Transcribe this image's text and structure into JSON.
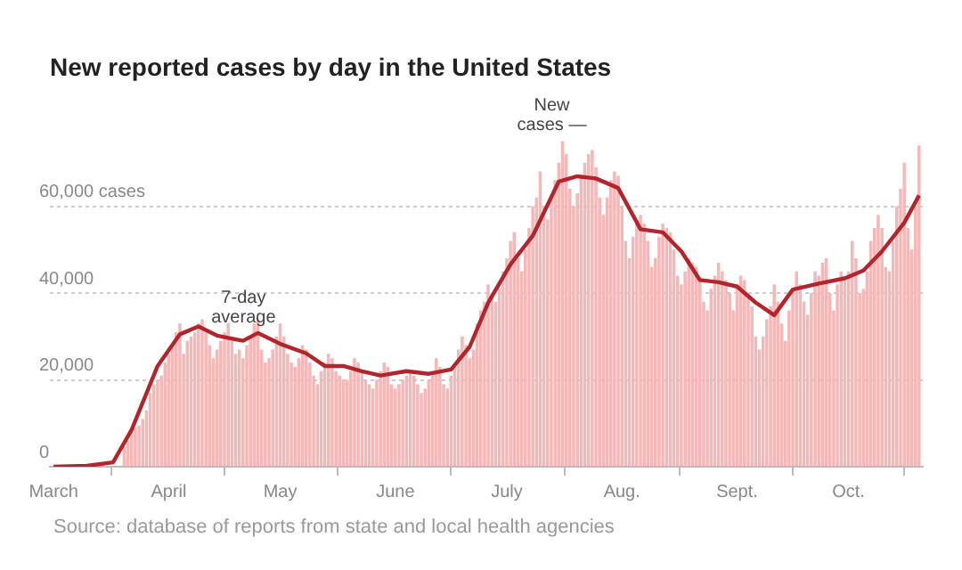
{
  "chart_data": {
    "type": "bar",
    "title": "New reported cases by day in the United States",
    "x": [
      "--03-20",
      "--03-21",
      "--03-22",
      "--03-23",
      "--03-24",
      "--03-25",
      "--03-26",
      "--03-27",
      "--03-28",
      "--03-29",
      "--03-30",
      "--03-31",
      "--04-01",
      "--04-02",
      "--04-03",
      "--04-04",
      "--04-05",
      "--04-06",
      "--04-07",
      "--04-08",
      "--04-09",
      "--04-10",
      "--04-11",
      "--04-12",
      "--04-13",
      "--04-14",
      "--04-15",
      "--04-16",
      "--04-17",
      "--04-18",
      "--04-19",
      "--04-20",
      "--04-21",
      "--04-22",
      "--04-23",
      "--04-24",
      "--04-25",
      "--04-26",
      "--04-27",
      "--04-28",
      "--04-29",
      "--04-30",
      "--05-01",
      "--05-02",
      "--05-03",
      "--05-04",
      "--05-05",
      "--05-06",
      "--05-07",
      "--05-08",
      "--05-09",
      "--05-10",
      "--05-11",
      "--05-12",
      "--05-13",
      "--05-14",
      "--05-15",
      "--05-16",
      "--05-17",
      "--05-18",
      "--05-19",
      "--05-20",
      "--05-21",
      "--05-22",
      "--05-23",
      "--05-24",
      "--05-25",
      "--05-26",
      "--05-27",
      "--05-28",
      "--05-29",
      "--05-30",
      "--05-31",
      "--06-01",
      "--06-02",
      "--06-03",
      "--06-04",
      "--06-05",
      "--06-06",
      "--06-07",
      "--06-08",
      "--06-09",
      "--06-10",
      "--06-11",
      "--06-12",
      "--06-13",
      "--06-14",
      "--06-15",
      "--06-16",
      "--06-17",
      "--06-18",
      "--06-19",
      "--06-20",
      "--06-21",
      "--06-22",
      "--06-23",
      "--06-24",
      "--06-25",
      "--06-26",
      "--06-27",
      "--06-28",
      "--06-29",
      "--06-30",
      "--07-01",
      "--07-02",
      "--07-03",
      "--07-04",
      "--07-05",
      "--07-06",
      "--07-07",
      "--07-08",
      "--07-09",
      "--07-10",
      "--07-11",
      "--07-12",
      "--07-13",
      "--07-14",
      "--07-15",
      "--07-16",
      "--07-17",
      "--07-18",
      "--07-19",
      "--07-20",
      "--07-21",
      "--07-22",
      "--07-23",
      "--07-24",
      "--07-25",
      "--07-26",
      "--07-27",
      "--07-28",
      "--07-29",
      "--07-30",
      "--07-31",
      "--08-01",
      "--08-02",
      "--08-03",
      "--08-04",
      "--08-05",
      "--08-06",
      "--08-07",
      "--08-08",
      "--08-09",
      "--08-10",
      "--08-11",
      "--08-12",
      "--08-13",
      "--08-14",
      "--08-15",
      "--08-16",
      "--08-17",
      "--08-18",
      "--08-19",
      "--08-20",
      "--08-21",
      "--08-22",
      "--08-23",
      "--08-24",
      "--08-25",
      "--08-26",
      "--08-27",
      "--08-28",
      "--08-29",
      "--08-30",
      "--08-31",
      "--09-01",
      "--09-02",
      "--09-03",
      "--09-04",
      "--09-05",
      "--09-06",
      "--09-07",
      "--09-08",
      "--09-09",
      "--09-10",
      "--09-11",
      "--09-12",
      "--09-13",
      "--09-14",
      "--09-15",
      "--09-16",
      "--09-17",
      "--09-18",
      "--09-19",
      "--09-20",
      "--09-21",
      "--09-22",
      "--09-23",
      "--09-24",
      "--09-25",
      "--09-26",
      "--09-27",
      "--09-28",
      "--09-29",
      "--09-30",
      "--10-01",
      "--10-02",
      "--10-03",
      "--10-04",
      "--10-05",
      "--10-06",
      "--10-07",
      "--10-08",
      "--10-09",
      "--10-10",
      "--10-11",
      "--10-12",
      "--10-13",
      "--10-14",
      "--10-15",
      "--10-16",
      "--10-17",
      "--10-18",
      "--10-19",
      "--10-20"
    ],
    "series": [
      {
        "color": "#f5b8b8",
        "values": [
          4500,
          6000,
          8000,
          9000,
          9500,
          11000,
          13000,
          17000,
          19000,
          20000,
          21000,
          24000,
          26000,
          28000,
          31000,
          33000,
          26000,
          29000,
          30000,
          31000,
          33000,
          34000,
          31000,
          28000,
          25000,
          27000,
          29000,
          31000,
          33000,
          30000,
          26000,
          27000,
          25000,
          28000,
          30000,
          33000,
          34000,
          27000,
          24000,
          25000,
          27000,
          30000,
          33000,
          30000,
          26000,
          24000,
          23000,
          25000,
          28000,
          27000,
          24000,
          21000,
          19000,
          22000,
          24000,
          26000,
          25000,
          22000,
          21000,
          20000,
          20000,
          22000,
          25000,
          24000,
          22000,
          20000,
          19000,
          18000,
          20000,
          22000,
          24000,
          23000,
          19000,
          18000,
          19000,
          20000,
          21000,
          22000,
          21000,
          19000,
          17000,
          18000,
          20000,
          22000,
          25000,
          23000,
          19000,
          18000,
          21000,
          23000,
          27000,
          30000,
          28000,
          25000,
          27000,
          33000,
          36000,
          38000,
          42000,
          40000,
          38000,
          41000,
          45000,
          48000,
          52000,
          54000,
          48000,
          45000,
          50000,
          55000,
          60000,
          62000,
          68000,
          60000,
          57000,
          62000,
          66000,
          70000,
          75000,
          72000,
          64000,
          60000,
          63000,
          67000,
          70000,
          72000,
          73000,
          69000,
          62000,
          58000,
          62000,
          66000,
          68000,
          67000,
          60000,
          52000,
          48000,
          53000,
          57000,
          58000,
          56000,
          52000,
          46000,
          48000,
          53000,
          56000,
          55000,
          54000,
          50000,
          44000,
          42000,
          45000,
          48000,
          47000,
          46000,
          43000,
          38000,
          36000,
          41000,
          44000,
          47000,
          45000,
          43000,
          40000,
          36000,
          42000,
          44000,
          43000,
          40000,
          37000,
          30000,
          27000,
          30000,
          34000,
          37000,
          42000,
          38000,
          33000,
          29000,
          36000,
          40000,
          45000,
          42000,
          38000,
          35000,
          40000,
          45000,
          44000,
          47000,
          48000,
          40000,
          36000,
          42000,
          45000,
          43000,
          45000,
          52000,
          48000,
          40000,
          41000,
          45000,
          52000,
          55000,
          58000,
          55000,
          46000,
          45000,
          52000,
          60000,
          64000,
          70000,
          55000,
          50000,
          60000,
          74000
        ]
      },
      {
        "type": "line",
        "color": "#b3242b",
        "x": [
          "--03-01",
          "--03-10",
          "--03-17",
          "--03-22",
          "--03-29",
          "--04-04",
          "--04-09",
          "--04-14",
          "--04-21",
          "--04-25",
          "--05-01",
          "--05-08",
          "--05-13",
          "--05-18",
          "--05-23",
          "--05-28",
          "--06-04",
          "--06-10",
          "--06-16",
          "--06-21",
          "--06-26",
          "--07-02",
          "--07-08",
          "--07-15",
          "--07-20",
          "--07-25",
          "--07-31",
          "--08-06",
          "--08-12",
          "--08-17",
          "--08-22",
          "--08-27",
          "--09-01",
          "--09-06",
          "--09-11",
          "--09-16",
          "--09-23",
          "--09-30",
          "--10-05",
          "--10-10",
          "--10-16",
          "--10-20"
        ],
        "values": [
          0,
          200,
          1000,
          8500,
          23200,
          30500,
          32300,
          30200,
          29000,
          30800,
          28300,
          26100,
          23200,
          23200,
          22000,
          21000,
          22000,
          21400,
          22400,
          27600,
          37800,
          46600,
          53200,
          65700,
          66900,
          66400,
          64200,
          54700,
          54000,
          49600,
          43000,
          42500,
          41500,
          37800,
          34900,
          40800,
          42200,
          43400,
          45200,
          49600,
          56200,
          62500
        ]
      }
    ],
    "xlim": [
      "--02-29",
      "--10-21"
    ],
    "xticks": [
      {
        "value": "--03-01",
        "label": "March"
      },
      {
        "value": "--04-01",
        "label": "April"
      },
      {
        "value": "--05-01",
        "label": "May"
      },
      {
        "value": "--06-01",
        "label": "June"
      },
      {
        "value": "--07-01",
        "label": "July"
      },
      {
        "value": "--08-01",
        "label": "Aug."
      },
      {
        "value": "--09-01",
        "label": "Sept."
      },
      {
        "value": "--10-01",
        "label": "Oct."
      }
    ],
    "ylim": [
      0,
      76000
    ],
    "yticks": [
      0,
      {
        "value": 20000,
        "label": "20,000"
      },
      {
        "value": 40000,
        "label": "40,000"
      },
      {
        "value": 60000,
        "label": "60,000 cases"
      }
    ],
    "grid": "y",
    "legend": false,
    "marker": "none",
    "line_style": "solid",
    "annotations": [
      {
        "text": "7-day\naverage",
        "x": "--04-24",
        "y": 30800
      },
      {
        "text": "New\ncases —",
        "x": "--07-16",
        "y": 75000
      },
      "Source: database of reports from state and local health agencies"
    ]
  }
}
